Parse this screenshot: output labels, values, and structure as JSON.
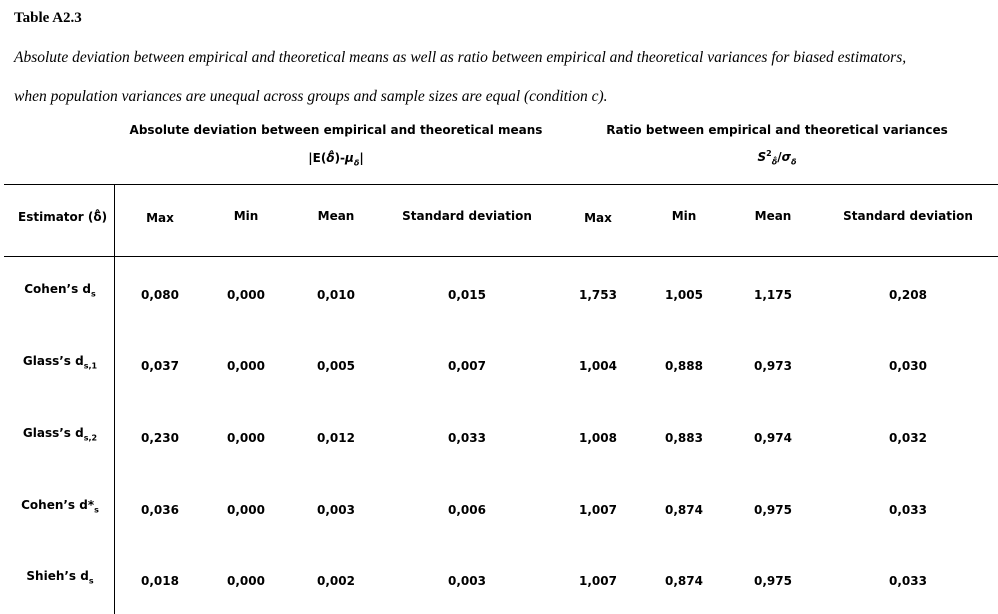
{
  "table_id": "Table A2.3",
  "caption_line1": "Absolute deviation between empirical and theoretical means as well as ratio between empirical and theoretical variances for biased estimators,",
  "caption_line2": "when population variances are unequal across groups and sample sizes are equal (condition c).",
  "group_headers": {
    "left": "Absolute deviation between empirical and theoretical means",
    "left_formula": "|E(δ̂)-μδ|",
    "right": "Ratio between empirical and theoretical variances",
    "right_formula": "S²δ̂/σδ"
  },
  "columns": {
    "estimator": "Estimator (δ̂)",
    "left": [
      "Max",
      "Min",
      "Mean",
      "Standard deviation"
    ],
    "right": [
      "Max",
      "Min",
      "Mean",
      "Standard deviation"
    ]
  },
  "rows": [
    {
      "base": "Cohen’s d",
      "sub": "s",
      "values": [
        "0,080",
        "0,000",
        "0,010",
        "0,015",
        "1,753",
        "1,005",
        "1,175",
        "0,208"
      ]
    },
    {
      "base": "Glass’s d",
      "sub": "s,1",
      "values": [
        "0,037",
        "0,000",
        "0,005",
        "0,007",
        "1,004",
        "0,888",
        "0,973",
        "0,030"
      ]
    },
    {
      "base": "Glass’s d",
      "sub": "s,2",
      "values": [
        "0,230",
        "0,000",
        "0,012",
        "0,033",
        "1,008",
        "0,883",
        "0,974",
        "0,032"
      ]
    },
    {
      "base": "Cohen’s d*",
      "sub": "s",
      "values": [
        "0,036",
        "0,000",
        "0,003",
        "0,006",
        "1,007",
        "0,874",
        "0,975",
        "0,033"
      ]
    },
    {
      "base": "Shieh’s d",
      "sub": "s",
      "values": [
        "0,018",
        "0,000",
        "0,002",
        "0,003",
        "1,007",
        "0,874",
        "0,975",
        "0,033"
      ]
    }
  ]
}
